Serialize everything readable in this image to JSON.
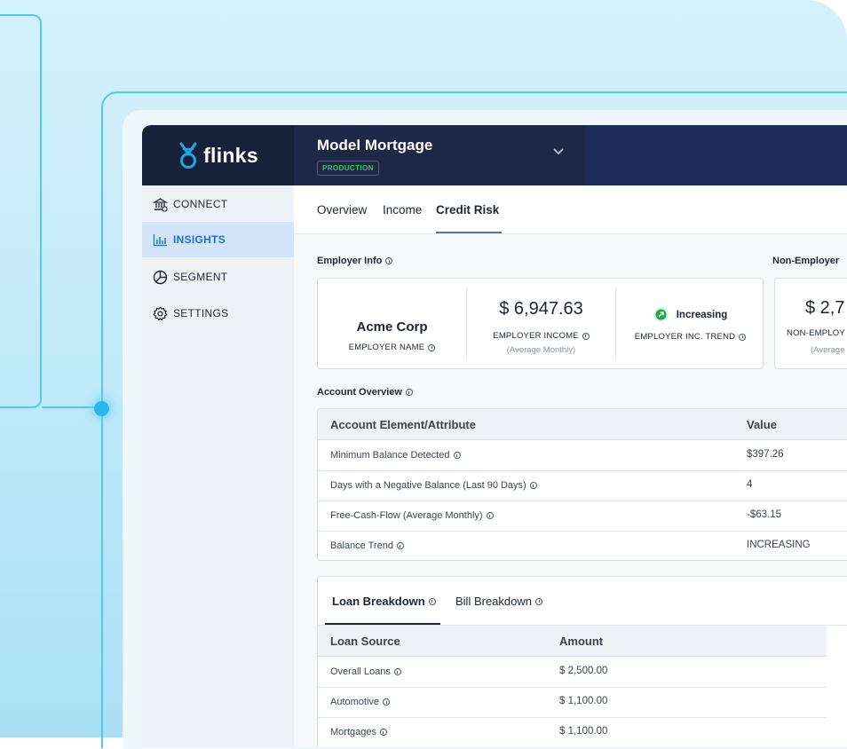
{
  "brand": {
    "logo_text": "flinks",
    "accent": "#1e9fe0"
  },
  "header": {
    "title": "Model Mortgage",
    "badge": "PRODUCTION"
  },
  "sidebar": {
    "items": [
      {
        "label": "CONNECT",
        "icon": "bank-icon"
      },
      {
        "label": "INSIGHTS",
        "icon": "bar-chart-icon",
        "active": true
      },
      {
        "label": "SEGMENT",
        "icon": "pie-chart-icon"
      },
      {
        "label": "SETTINGS",
        "icon": "gear-icon"
      }
    ]
  },
  "tabs": [
    {
      "label": "Overview"
    },
    {
      "label": "Income"
    },
    {
      "label": "Credit Risk",
      "active": true
    }
  ],
  "employer_info": {
    "label": "Employer Info",
    "employer_name": "Acme Corp",
    "employer_name_caption": "EMPLOYER NAME",
    "employer_income": "$ 6,947.63",
    "employer_income_caption": "EMPLOYER INCOME",
    "employer_income_sub": "(Average Monthly)",
    "trend_value": "Increasing",
    "trend_caption": "EMPLOYER INC. TREND"
  },
  "non_employer": {
    "label": "Non-Employer",
    "value": "$ 2,7",
    "caption": "NON-EMPLOY",
    "sub": "(Average"
  },
  "account_overview": {
    "label": "Account Overview",
    "headers": [
      "Account Element/Attribute",
      "Value"
    ],
    "rows": [
      {
        "attr": "Minimum Balance Detected",
        "value": "$397.26"
      },
      {
        "attr": "Days with a Negative Balance (Last 90 Days)",
        "value": "4"
      },
      {
        "attr": "Free-Cash-Flow (Average Monthly)",
        "value": "-$63.15"
      },
      {
        "attr": "Balance Trend",
        "value": "INCREASING"
      }
    ]
  },
  "loan_section": {
    "tabs": [
      {
        "label": "Loan Breakdown",
        "active": true
      },
      {
        "label": "Bill Breakdown"
      }
    ],
    "headers": [
      "Loan Source",
      "Amount"
    ],
    "rows": [
      {
        "source": "Overall Loans",
        "amount": "$ 2,500.00"
      },
      {
        "source": "Automotive",
        "amount": "$ 1,100.00"
      },
      {
        "source": "Mortgages",
        "amount": "$ 1,100.00"
      }
    ]
  }
}
